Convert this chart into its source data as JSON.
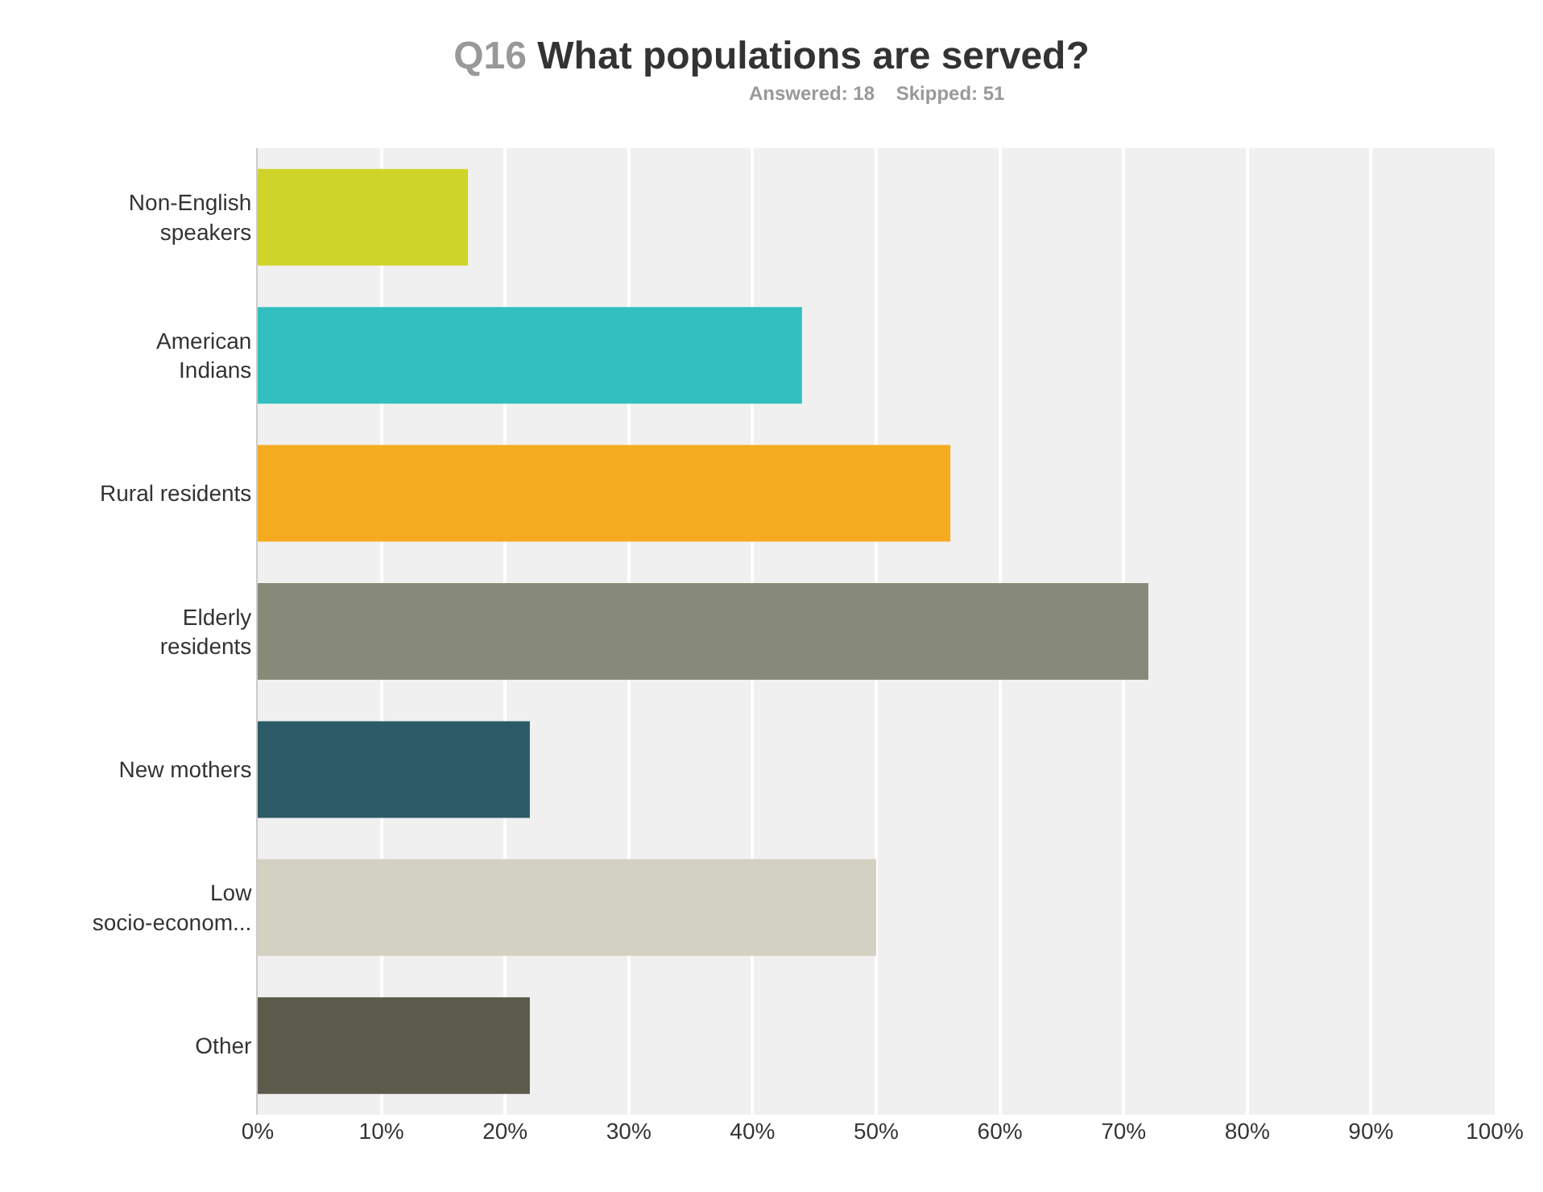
{
  "chart_data": {
    "type": "bar",
    "orientation": "horizontal",
    "title": "Q16 What populations are served?",
    "subtitle": "Answered: 18    Skipped: 51",
    "categories": [
      "Non-English\nspeakers",
      "American\nIndians",
      "Rural residents",
      "Elderly\nresidents",
      "New mothers",
      "Low\nsocio-econom...",
      "Other"
    ],
    "values": [
      17,
      44,
      56,
      72,
      22,
      50,
      22
    ],
    "colors": [
      "#cfd42a",
      "#33bfbf",
      "#f5ab20",
      "#878a78",
      "#2c5b67",
      "#d3d1c1",
      "#5c5a4b"
    ],
    "xlim": [
      0,
      100
    ],
    "xticks": [
      {
        "value": 0,
        "label": "0%"
      },
      {
        "value": 10,
        "label": "10%"
      },
      {
        "value": 20,
        "label": "20%"
      },
      {
        "value": 30,
        "label": "30%"
      },
      {
        "value": 40,
        "label": "40%"
      },
      {
        "value": 50,
        "label": "50%"
      },
      {
        "value": 60,
        "label": "60%"
      },
      {
        "value": 70,
        "label": "70%"
      },
      {
        "value": 80,
        "label": "80%"
      },
      {
        "value": 90,
        "label": "90%"
      },
      {
        "value": 100,
        "label": "100%"
      }
    ],
    "grid": "x"
  }
}
